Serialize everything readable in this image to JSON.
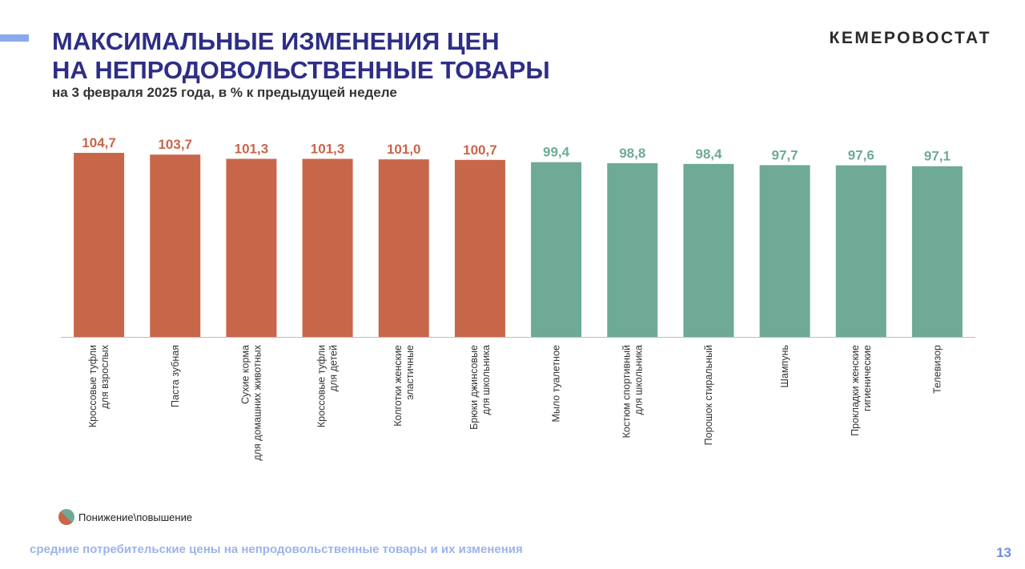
{
  "header": {
    "title_line1": "МАКСИМАЛЬНЫЕ ИЗМЕНЕНИЯ ЦЕН",
    "title_line2": "НА НЕПРОДОВОЛЬСТВЕННЫЕ ТОВАРЫ",
    "subtitle": "на 3 февраля 2025 года, в % к предыдущей неделе",
    "brand": "КЕМЕРОВОСТАТ"
  },
  "legend": {
    "label": "Понижение\\повышение"
  },
  "footer": {
    "text": "средние потребительские цены на непродовольственные товары и их изменения",
    "page_number": "13"
  },
  "colors": {
    "increase": "#c8664a",
    "decrease": "#6eaa96",
    "title": "#2e2e86"
  },
  "chart_data": {
    "type": "bar",
    "ylim": [
      0,
      104.7
    ],
    "grid": false,
    "legend_placement": "bottom-left",
    "categories": [
      [
        "Кроссовые туфли",
        "для взрослых"
      ],
      [
        "Паста зубная"
      ],
      [
        "Сухие корма",
        "для домашних животных"
      ],
      [
        "Кроссовые туфли",
        "для детей"
      ],
      [
        "Колготки женские",
        "эластичные"
      ],
      [
        "Брюки джинсовые",
        "для школьника"
      ],
      [
        "Мыло туалетное"
      ],
      [
        "Костюм спортивный",
        "для школьника"
      ],
      [
        "Порошок стиральный"
      ],
      [
        "Шампунь"
      ],
      [
        "Прокладки женские",
        "гигиенические"
      ],
      [
        "Телевизор"
      ]
    ],
    "values": [
      104.7,
      103.7,
      101.3,
      101.3,
      101.0,
      100.7,
      99.4,
      98.8,
      98.4,
      97.7,
      97.6,
      97.1
    ],
    "value_labels": [
      "104,7",
      "103,7",
      "101,3",
      "101,3",
      "101,0",
      "100,7",
      "99,4",
      "98,8",
      "98,4",
      "97,7",
      "97,6",
      "97,1"
    ]
  }
}
